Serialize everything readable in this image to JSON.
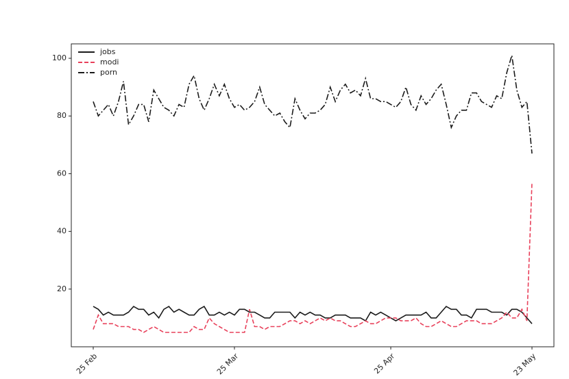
{
  "chart_data": {
    "type": "line",
    "categories": [
      "25 Feb",
      null,
      null,
      null,
      null,
      null,
      null,
      null,
      null,
      null,
      null,
      null,
      null,
      null,
      null,
      null,
      null,
      null,
      null,
      null,
      null,
      null,
      null,
      null,
      null,
      null,
      null,
      null,
      "25 Mar",
      null,
      null,
      null,
      null,
      null,
      null,
      null,
      null,
      null,
      null,
      null,
      null,
      null,
      null,
      null,
      null,
      null,
      null,
      null,
      null,
      null,
      null,
      null,
      null,
      null,
      null,
      null,
      null,
      null,
      null,
      "25 Apr",
      null,
      null,
      null,
      null,
      null,
      null,
      null,
      null,
      null,
      null,
      null,
      null,
      null,
      null,
      null,
      null,
      null,
      null,
      null,
      null,
      null,
      null,
      null,
      null,
      null,
      null,
      null,
      "23 May"
    ],
    "series": [
      {
        "name": "jobs",
        "color": "#1a1a1a",
        "linestyle": "solid",
        "values": [
          14,
          13,
          11,
          12,
          11,
          11,
          11,
          12,
          14,
          13,
          13,
          11,
          12,
          10,
          13,
          14,
          12,
          13,
          12,
          11,
          11,
          13,
          14,
          11,
          11,
          12,
          11,
          12,
          11,
          13,
          13,
          12,
          12,
          11,
          10,
          10,
          12,
          12,
          12,
          12,
          10,
          12,
          11,
          12,
          11,
          11,
          10,
          10,
          11,
          11,
          11,
          10,
          10,
          10,
          9,
          12,
          11,
          12,
          11,
          10,
          9,
          10,
          11,
          11,
          11,
          11,
          12,
          10,
          10,
          12,
          14,
          13,
          13,
          11,
          11,
          10,
          13,
          13,
          13,
          12,
          12,
          12,
          11,
          13,
          13,
          12,
          10,
          8
        ]
      },
      {
        "name": "modi",
        "color": "#e8405a",
        "linestyle": "dashed",
        "values": [
          6,
          11,
          8,
          8,
          8,
          7,
          7,
          7,
          6,
          6,
          5,
          6,
          7,
          6,
          5,
          5,
          5,
          5,
          5,
          5,
          7,
          6,
          6,
          10,
          8,
          7,
          6,
          5,
          5,
          5,
          5,
          13,
          7,
          7,
          6,
          7,
          7,
          7,
          8,
          9,
          9,
          8,
          9,
          8,
          9,
          10,
          9,
          10,
          9,
          9,
          8,
          7,
          7,
          8,
          9,
          8,
          8,
          9,
          10,
          10,
          10,
          9,
          9,
          9,
          10,
          8,
          7,
          7,
          8,
          9,
          8,
          7,
          7,
          8,
          9,
          9,
          9,
          8,
          8,
          8,
          9,
          10,
          12,
          10,
          10,
          13,
          9,
          57
        ]
      },
      {
        "name": "porn",
        "color": "#1a1a1a",
        "linestyle": "dashdot",
        "values": [
          85,
          80,
          82,
          84,
          80,
          85,
          92,
          77,
          80,
          84,
          84,
          78,
          89,
          86,
          83,
          82,
          80,
          84,
          83,
          91,
          94,
          86,
          82,
          86,
          91,
          87,
          91,
          86,
          83,
          84,
          82,
          83,
          85,
          90,
          84,
          82,
          80,
          81,
          78,
          76,
          86,
          82,
          79,
          81,
          81,
          82,
          84,
          90,
          85,
          89,
          91,
          88,
          89,
          87,
          93,
          86,
          86,
          85,
          85,
          84,
          83,
          85,
          90,
          84,
          82,
          87,
          84,
          86,
          89,
          91,
          84,
          76,
          80,
          82,
          82,
          88,
          88,
          85,
          84,
          83,
          87,
          86,
          95,
          101,
          89,
          83,
          85,
          67
        ]
      }
    ],
    "ylim": [
      0,
      105
    ],
    "yticks": [
      20,
      40,
      60,
      80,
      100
    ],
    "legend": "upper left"
  }
}
